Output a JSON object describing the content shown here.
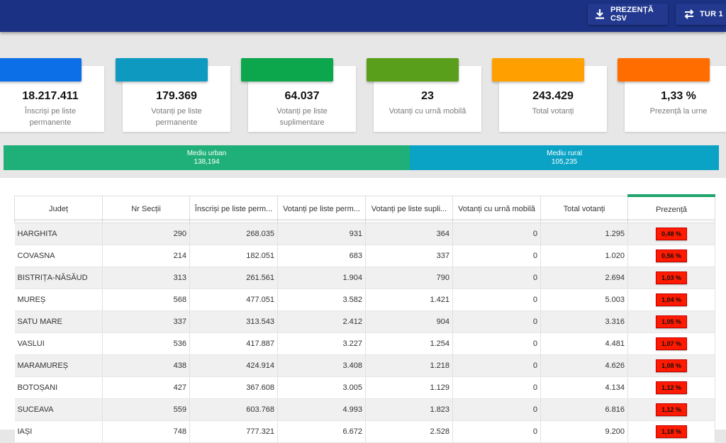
{
  "header": {
    "csv_button": "PREZENȚĂ CSV",
    "round_button": "TUR 1"
  },
  "cards": [
    {
      "value": "18.217.411",
      "label": "Înscriși pe liste permanente",
      "color": "#0d6fe8"
    },
    {
      "value": "179.369",
      "label": "Votanți pe liste permanente",
      "color": "#0e9ac0"
    },
    {
      "value": "64.037",
      "label": "Votanți pe liste suplimentare",
      "color": "#0ca64d"
    },
    {
      "value": "23",
      "label": "Votanți cu urnă mobilă",
      "color": "#5a9f1b"
    },
    {
      "value": "243.429",
      "label": "Total votanți",
      "color": "#ffa000"
    },
    {
      "value": "1,33 %",
      "label": "Prezență la urne",
      "color": "#ff6d00"
    }
  ],
  "environment": {
    "urban": {
      "label": "Mediu urban",
      "value": "138,194",
      "fraction": 0.568,
      "color": "#1fb07a"
    },
    "rural": {
      "label": "Mediu rural",
      "value": "105,235",
      "fraction": 0.432,
      "color": "#0aa3c6"
    }
  },
  "table": {
    "columns": [
      "Județ",
      "Nr Secții",
      "Înscriși pe liste perm...",
      "Votanți pe liste perm...",
      "Votanți pe liste supli...",
      "Votanți cu urnă mobilă",
      "Total votanți",
      "Prezență"
    ],
    "rows": [
      {
        "judet": "HARGHITA",
        "sectii": "290",
        "inscrisi": "268.035",
        "perm": "931",
        "supl": "364",
        "mobila": "0",
        "total": "1.295",
        "prezenta": "0,48 %"
      },
      {
        "judet": "COVASNA",
        "sectii": "214",
        "inscrisi": "182.051",
        "perm": "683",
        "supl": "337",
        "mobila": "0",
        "total": "1.020",
        "prezenta": "0,56 %"
      },
      {
        "judet": "BISTRIȚA-NĂSĂUD",
        "sectii": "313",
        "inscrisi": "261.561",
        "perm": "1.904",
        "supl": "790",
        "mobila": "0",
        "total": "2.694",
        "prezenta": "1,03 %"
      },
      {
        "judet": "MUREȘ",
        "sectii": "568",
        "inscrisi": "477.051",
        "perm": "3.582",
        "supl": "1.421",
        "mobila": "0",
        "total": "5.003",
        "prezenta": "1,04 %"
      },
      {
        "judet": "SATU MARE",
        "sectii": "337",
        "inscrisi": "313.543",
        "perm": "2.412",
        "supl": "904",
        "mobila": "0",
        "total": "3.316",
        "prezenta": "1,05 %"
      },
      {
        "judet": "VASLUI",
        "sectii": "536",
        "inscrisi": "417.887",
        "perm": "3.227",
        "supl": "1.254",
        "mobila": "0",
        "total": "4.481",
        "prezenta": "1,07 %"
      },
      {
        "judet": "MARAMUREȘ",
        "sectii": "438",
        "inscrisi": "424.914",
        "perm": "3.408",
        "supl": "1.218",
        "mobila": "0",
        "total": "4.626",
        "prezenta": "1,08 %"
      },
      {
        "judet": "BOTOȘANI",
        "sectii": "427",
        "inscrisi": "367.608",
        "perm": "3.005",
        "supl": "1.129",
        "mobila": "0",
        "total": "4.134",
        "prezenta": "1,12 %"
      },
      {
        "judet": "SUCEAVA",
        "sectii": "559",
        "inscrisi": "603.768",
        "perm": "4.993",
        "supl": "1.823",
        "mobila": "0",
        "total": "6.816",
        "prezenta": "1,12 %"
      },
      {
        "judet": "IAȘI",
        "sectii": "748",
        "inscrisi": "777.321",
        "perm": "6.672",
        "supl": "2.528",
        "mobila": "0",
        "total": "9.200",
        "prezenta": "1,18 %"
      }
    ],
    "badge_color": "#ff1a00"
  }
}
